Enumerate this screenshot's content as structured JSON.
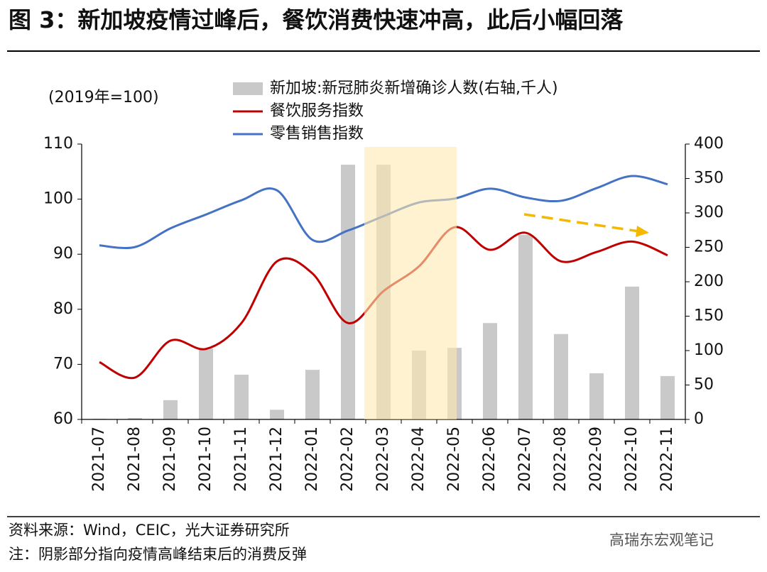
{
  "chart_data": {
    "type": "bar-line",
    "title": "图 3：新加坡疫情过峰后，餐饮消费快速冲高，此后小幅回落",
    "y_label": "(2019年=100)",
    "categories": [
      "2021-07",
      "2021-08",
      "2021-09",
      "2021-10",
      "2021-11",
      "2021-12",
      "2022-01",
      "2022-02",
      "2022-03",
      "2022-04",
      "2022-05",
      "2022-06",
      "2022-07",
      "2022-08",
      "2022-09",
      "2022-10",
      "2022-11"
    ],
    "series": [
      {
        "name": "新加坡:新冠肺炎新增确诊人数(右轴,千人)",
        "type": "bar",
        "axis": "y2",
        "color": "#c9c9c9",
        "values": [
          1,
          2,
          28,
          103,
          65,
          14,
          72,
          370,
          370,
          100,
          104,
          140,
          268,
          124,
          67,
          193,
          63
        ]
      },
      {
        "name": "餐饮服务指数",
        "type": "line",
        "color": "#c00000",
        "values": [
          70.4,
          67.6,
          74.3,
          72.8,
          77.5,
          88.7,
          86.5,
          77.5,
          83.3,
          87.8,
          94.9,
          90.8,
          93.9,
          88.7,
          90.4,
          92.3,
          89.8
        ]
      },
      {
        "name": "零售销售指数",
        "type": "line",
        "color": "#4472c4",
        "values": [
          91.6,
          91.3,
          94.7,
          97.2,
          99.8,
          101.6,
          92.6,
          94.3,
          96.9,
          99.4,
          100.1,
          101.9,
          100.3,
          99.7,
          102.0,
          104.2,
          102.7
        ]
      }
    ],
    "ylim": [
      60,
      110
    ],
    "yticks": [
      60,
      70,
      80,
      90,
      100,
      110
    ],
    "y2lim": [
      0,
      400
    ],
    "y2ticks": [
      0,
      50,
      100,
      150,
      200,
      250,
      300,
      350,
      400
    ],
    "source": "资料来源：Wind，CEIC，光大证券研究所",
    "note": "注：阴影部分指向疫情高峰结束后的消费反弹",
    "watermark": "高瑞东宏观笔记"
  }
}
